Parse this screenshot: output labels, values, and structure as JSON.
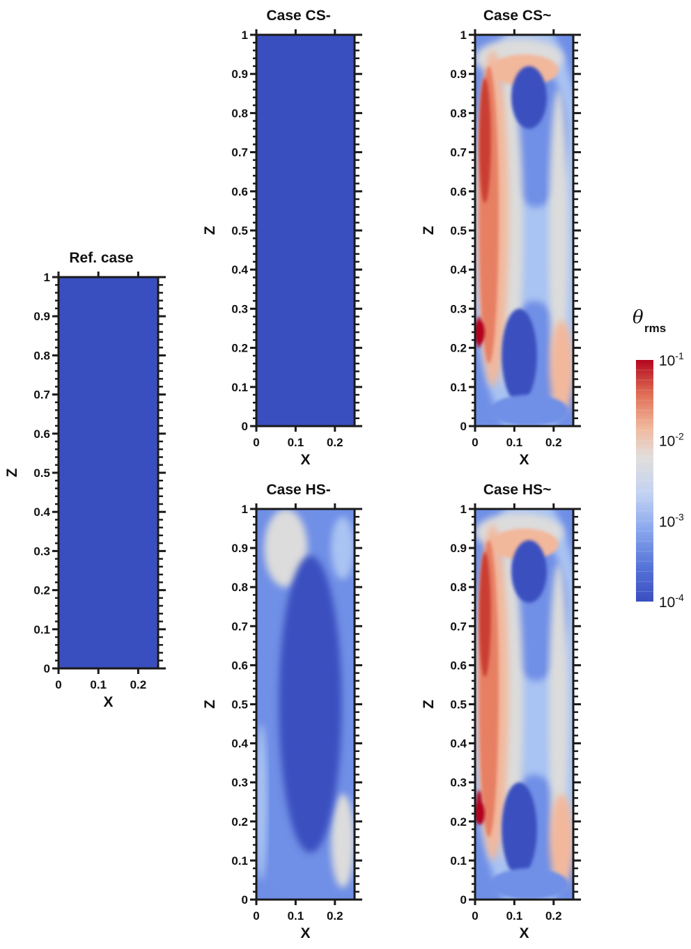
{
  "chart_data": {
    "type": "heatmap",
    "colorbar": {
      "symbol": "θ",
      "subscript": "rms",
      "scale": "log",
      "range": [
        0.0001,
        0.1
      ],
      "tick_labels": [
        {
          "base": "10",
          "exp": "-1",
          "value": 0.1
        },
        {
          "base": "10",
          "exp": "-2",
          "value": 0.01
        },
        {
          "base": "10",
          "exp": "-3",
          "value": 0.001
        },
        {
          "base": "10",
          "exp": "-4",
          "value": 0.0001
        }
      ],
      "colors": [
        "#3a4fbf",
        "#6f8fe6",
        "#a9c3f2",
        "#dcdcdc",
        "#f2b89c",
        "#e77f64",
        "#c93c33",
        "#b2061d"
      ]
    },
    "panels": [
      {
        "title": "Ref. case",
        "xlabel": "X",
        "ylabel": "Z",
        "xlim": [
          0,
          0.25
        ],
        "ylim": [
          0,
          1
        ],
        "xticks": [
          "0",
          "0.1",
          "0.2"
        ],
        "yticks": [
          "0",
          "0.1",
          "0.2",
          "0.3",
          "0.4",
          "0.5",
          "0.6",
          "0.7",
          "0.8",
          "0.9",
          "1"
        ],
        "field": "uniform",
        "min_level": 0.0001
      },
      {
        "title": "Case CS-",
        "xlabel": "X",
        "ylabel": "Z",
        "xlim": [
          0,
          0.25
        ],
        "ylim": [
          0,
          1
        ],
        "xticks": [
          "0",
          "0.1",
          "0.2"
        ],
        "yticks": [
          "0",
          "0.1",
          "0.2",
          "0.3",
          "0.4",
          "0.5",
          "0.6",
          "0.7",
          "0.8",
          "0.9",
          "1"
        ],
        "field": "uniform",
        "min_level": 0.0001
      },
      {
        "title": "Case CS~",
        "xlabel": "X",
        "ylabel": "Z",
        "xlim": [
          0,
          0.25
        ],
        "ylim": [
          0,
          1
        ],
        "xticks": [
          "0",
          "0.1",
          "0.2"
        ],
        "yticks": [
          "0",
          "0.1",
          "0.2",
          "0.3",
          "0.4",
          "0.5",
          "0.6",
          "0.7",
          "0.8",
          "0.9",
          "1"
        ],
        "field": "wall-plume",
        "peak_x": 0.005,
        "peak_z": 0.24,
        "peak_level": 0.1
      },
      {
        "title": "Case HS-",
        "xlabel": "X",
        "ylabel": "Z",
        "xlim": [
          0,
          0.25
        ],
        "ylim": [
          0,
          1
        ],
        "xticks": [
          "0",
          "0.1",
          "0.2"
        ],
        "yticks": [
          "0",
          "0.1",
          "0.2",
          "0.3",
          "0.4",
          "0.5",
          "0.6",
          "0.7",
          "0.8",
          "0.9",
          "1"
        ],
        "field": "ring",
        "peak_level": 0.003
      },
      {
        "title": "Case HS~",
        "xlabel": "X",
        "ylabel": "Z",
        "xlim": [
          0,
          0.25
        ],
        "ylim": [
          0,
          1
        ],
        "xticks": [
          "0",
          "0.1",
          "0.2"
        ],
        "yticks": [
          "0",
          "0.1",
          "0.2",
          "0.3",
          "0.4",
          "0.5",
          "0.6",
          "0.7",
          "0.8",
          "0.9",
          "1"
        ],
        "field": "wall-plume",
        "peak_x": 0.005,
        "peak_z": 0.22,
        "peak_level": 0.1
      }
    ]
  }
}
